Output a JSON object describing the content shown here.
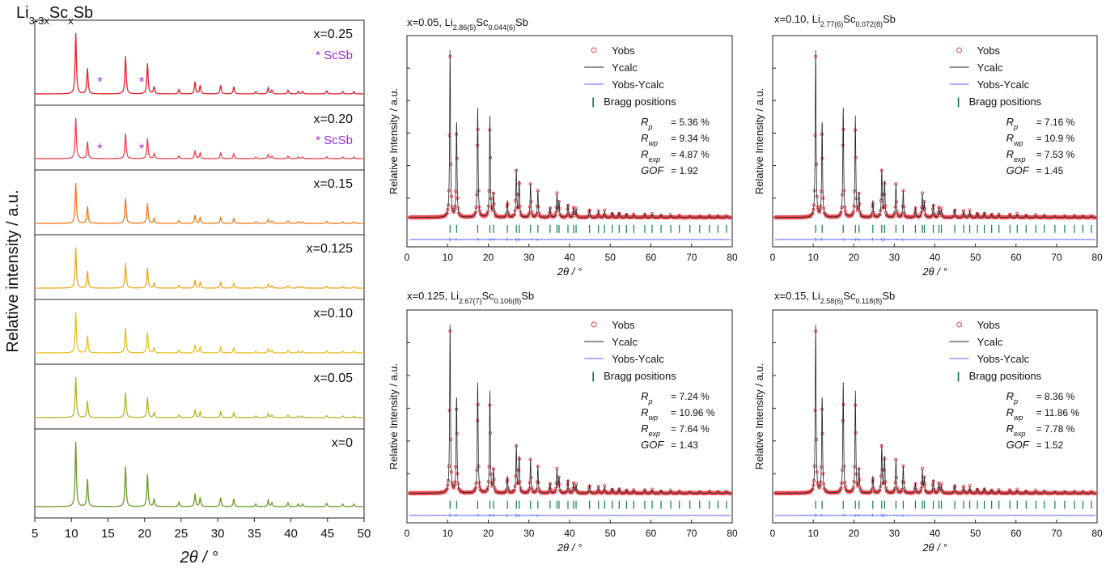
{
  "chart_data": [
    {
      "type": "line",
      "title_main": "Li",
      "title_sub1": "3-3x",
      "title_mid": "Sc",
      "title_sub2": "x",
      "title_end": "Sb",
      "xlabel": "2θ / °",
      "ylabel": "Relative intensity / a.u.",
      "xlim": [
        5,
        50
      ],
      "xticks": [
        5,
        10,
        15,
        20,
        25,
        30,
        35,
        40,
        45,
        50
      ],
      "stacked": true,
      "series": [
        {
          "name": "x=0.25",
          "color": "#e5202a",
          "annotation": "* ScSb",
          "impurity_marks_2theta": [
            13.9,
            19.6
          ]
        },
        {
          "name": "x=0.20",
          "color": "#f0404a",
          "annotation": "* ScSb",
          "impurity_marks_2theta": [
            13.9,
            19.6
          ]
        },
        {
          "name": "x=0.15",
          "color": "#ef7a1a"
        },
        {
          "name": "x=0.125",
          "color": "#efa622"
        },
        {
          "name": "x=0.10",
          "color": "#e9bf21"
        },
        {
          "name": "x=0.05",
          "color": "#b3b523"
        },
        {
          "name": "x=0",
          "color": "#6d9a28"
        }
      ],
      "peaks_2theta": [
        10.6,
        12.2,
        17.4,
        20.4,
        21.3,
        24.7,
        26.9,
        27.6,
        30.4,
        32.2,
        35.2,
        36.9,
        37.4,
        39.6,
        41.0,
        41.6,
        44.9,
        47.1,
        48.6
      ],
      "peak_rel_intensity": [
        1.0,
        0.42,
        0.62,
        0.5,
        0.12,
        0.07,
        0.2,
        0.14,
        0.14,
        0.12,
        0.04,
        0.1,
        0.06,
        0.06,
        0.04,
        0.04,
        0.05,
        0.04,
        0.04
      ],
      "impurity_color": "#9b30e0"
    },
    {
      "type": "scatter",
      "title_a": "x=0.05, Li",
      "title_sub1": "2.86(5)",
      "title_b": "Sc",
      "title_sub2": "0.044(6)",
      "title_c": "Sb",
      "xlabel": "2θ / °",
      "ylabel": "Relative Intensity / a.u.",
      "xlim": [
        0,
        80
      ],
      "xticks": [
        0,
        10,
        20,
        30,
        40,
        50,
        60,
        70,
        80
      ],
      "legend": [
        "Yobs",
        "Ycalc",
        "Yobs-Ycalc",
        "Bragg positions"
      ],
      "Rp": "= 5.36 %",
      "Rwp": "= 9.34 %",
      "Rexp": "= 4.87 %",
      "GOF": "= 1.92"
    },
    {
      "type": "scatter",
      "title_a": "x=0.10, Li",
      "title_sub1": "2.77(6)",
      "title_b": "Sc",
      "title_sub2": "0.072(8)",
      "title_c": "Sb",
      "xlabel": "2θ / °",
      "ylabel": "Relative Intensity / a.u.",
      "xlim": [
        0,
        80
      ],
      "xticks": [
        0,
        10,
        20,
        30,
        40,
        50,
        60,
        70,
        80
      ],
      "legend": [
        "Yobs",
        "Ycalc",
        "Yobs-Ycalc",
        "Bragg positions"
      ],
      "Rp": "= 7.16 %",
      "Rwp": "= 10.9 %",
      "Rexp": "= 7.53 %",
      "GOF": "= 1.45"
    },
    {
      "type": "scatter",
      "title_a": "x=0.125, Li",
      "title_sub1": "2.67(7)",
      "title_b": "Sc",
      "title_sub2": "0.106(8)",
      "title_c": "Sb",
      "xlabel": "2θ / °",
      "ylabel": "Relative Intensity / a.u.",
      "xlim": [
        0,
        80
      ],
      "xticks": [
        0,
        10,
        20,
        30,
        40,
        50,
        60,
        70,
        80
      ],
      "legend": [
        "Yobs",
        "Ycalc",
        "Yobs-Ycalc",
        "Bragg positions"
      ],
      "Rp": "= 7.24 %",
      "Rwp": "= 10.96 %",
      "Rexp": "= 7.64 %",
      "GOF": "= 1.43"
    },
    {
      "type": "scatter",
      "title_a": "x=0.15, Li",
      "title_sub1": "2.58(6)",
      "title_b": "Sc",
      "title_sub2": "0.118(8)",
      "title_c": "Sb",
      "xlabel": "2θ / °",
      "ylabel": "Relative Intensity / a.u.",
      "xlim": [
        0,
        80
      ],
      "xticks": [
        0,
        10,
        20,
        30,
        40,
        50,
        60,
        70,
        80
      ],
      "legend": [
        "Yobs",
        "Ycalc",
        "Yobs-Ycalc",
        "Bragg positions"
      ],
      "Rp": "= 8.36 %",
      "Rwp": "= 11.86 %",
      "Rexp": "= 7.78 %",
      "GOF": "= 1.52"
    }
  ],
  "refinement_peaks_2theta": [
    10.6,
    12.2,
    17.4,
    20.4,
    21.3,
    24.7,
    26.9,
    27.6,
    30.4,
    32.2,
    35.2,
    36.9,
    37.4,
    39.6,
    41.0,
    41.6,
    44.9,
    47.1,
    48.6,
    50.5,
    52.2,
    54.0,
    55.8,
    58.5,
    60.3,
    62.5,
    64.9,
    67.0,
    69.6,
    72.0,
    74.4,
    76.5,
    78.6
  ],
  "refinement_peak_rel_intensity": [
    1.0,
    0.58,
    0.66,
    0.6,
    0.14,
    0.1,
    0.28,
    0.22,
    0.2,
    0.16,
    0.06,
    0.14,
    0.09,
    0.08,
    0.06,
    0.05,
    0.05,
    0.04,
    0.04,
    0.03,
    0.03,
    0.02,
    0.02,
    0.02,
    0.02,
    0.015,
    0.015,
    0.012,
    0.01,
    0.01,
    0.01,
    0.01,
    0.01
  ],
  "colors": {
    "yobs": "#e8464e",
    "ycalc": "#222222",
    "diff": "#5a64ff",
    "bragg": "#0f7a52"
  },
  "legend_symbols": {
    "bragg": "|",
    "rfactor_star": "*"
  }
}
